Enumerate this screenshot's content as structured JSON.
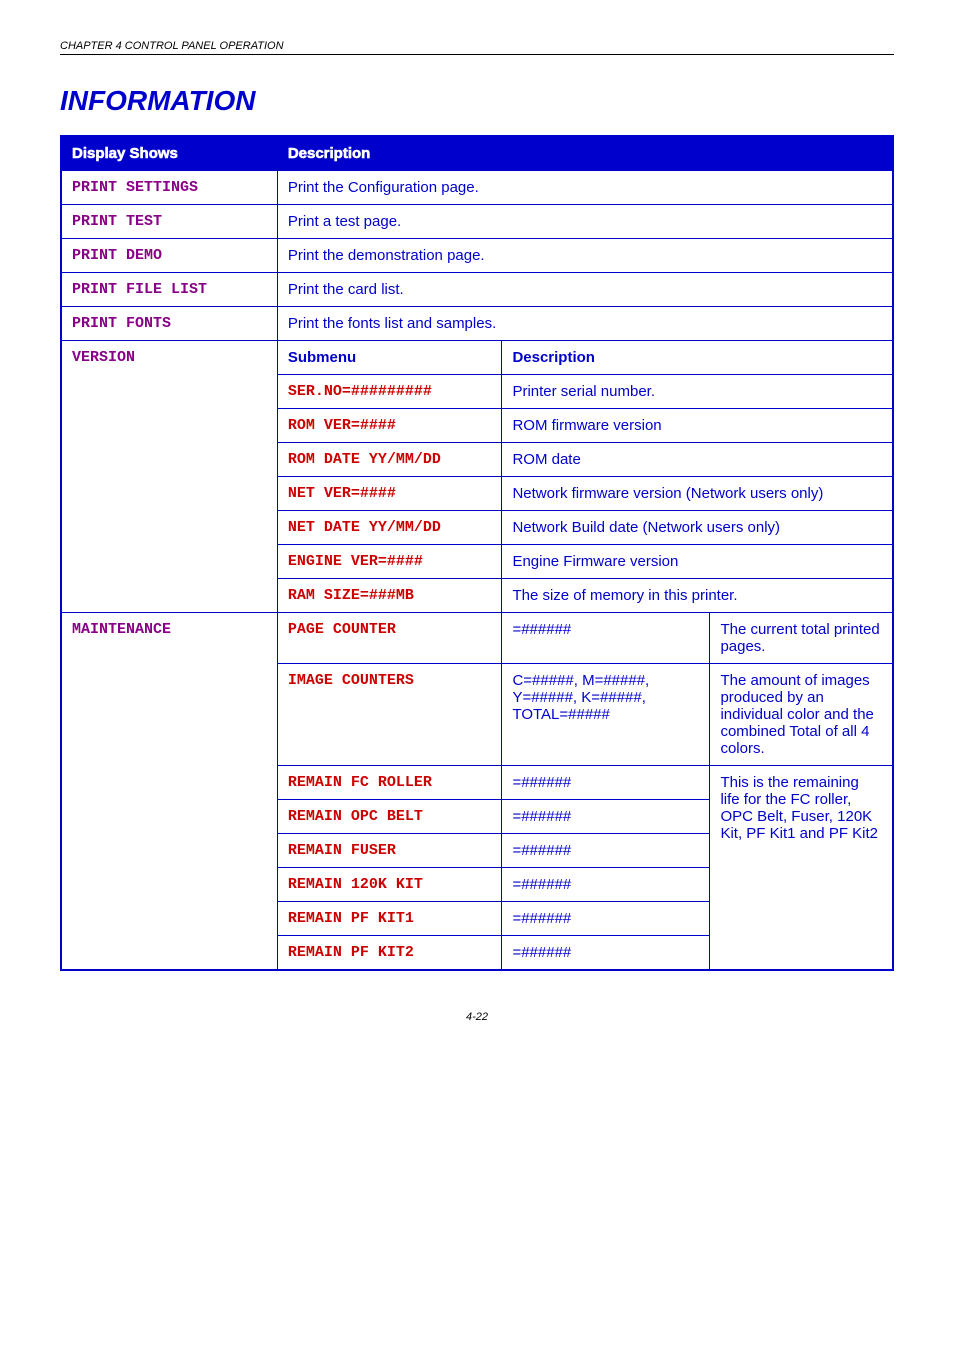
{
  "chapter": "CHAPTER 4 CONTROL PANEL OPERATION",
  "title": "INFORMATION",
  "headers": {
    "display_shows": "Display Shows",
    "description": "Description"
  },
  "rows": {
    "print_settings": {
      "label": "PRINT SETTINGS",
      "desc": "Print the Configuration page."
    },
    "print_test": {
      "label": "PRINT TEST",
      "desc": "Print a test page."
    },
    "print_demo": {
      "label": "PRINT DEMO",
      "desc": "Print the demonstration page."
    },
    "print_file_list": {
      "label": "PRINT FILE LIST",
      "desc": "Print the card list."
    },
    "print_fonts": {
      "label": "PRINT FONTS",
      "desc": "Print the fonts list and samples."
    }
  },
  "version": {
    "label": "VERSION",
    "sub_hdr": {
      "submenu": "Submenu",
      "description": "Description"
    },
    "items": {
      "ser_no": {
        "label": "SER.NO=#########",
        "desc": "Printer serial number."
      },
      "rom_ver": {
        "label": "ROM VER=####",
        "desc": "ROM firmware version"
      },
      "rom_date": {
        "label": "ROM DATE YY/MM/DD",
        "desc": "ROM date"
      },
      "net_ver": {
        "label": "NET VER=####",
        "desc": "Network firmware version (Network users only)"
      },
      "net_date": {
        "label": "NET DATE YY/MM/DD",
        "desc": "Network Build date (Network users only)"
      },
      "engine": {
        "label": "ENGINE VER=####",
        "desc": "Engine Firmware version"
      },
      "ram": {
        "label": "RAM SIZE=###MB",
        "desc": "The size of memory in this printer."
      }
    }
  },
  "maintenance": {
    "label": "MAINTENANCE",
    "page_counter": {
      "label": "PAGE COUNTER",
      "val": "=######",
      "desc": "The current total printed pages."
    },
    "image_counters": {
      "label": "IMAGE COUNTERS",
      "val": "C=#####, M=#####, Y=#####, K=#####, TOTAL=#####",
      "desc": "The amount of images produced by an individual color and the combined Total of all 4 colors."
    },
    "remain_group_desc": "This is the remaining life for the FC roller, OPC Belt, Fuser, 120K Kit, PF Kit1 and PF Kit2",
    "remain": {
      "fc_roller": {
        "label": "REMAIN FC ROLLER",
        "val": "=######"
      },
      "opc_belt": {
        "label": "REMAIN OPC BELT",
        "val": "=######"
      },
      "fuser": {
        "label": "REMAIN FUSER",
        "val": "=######"
      },
      "k120": {
        "label": "REMAIN 120K KIT",
        "val": "=######"
      },
      "pf1": {
        "label": "REMAIN PF KIT1",
        "val": "=######"
      },
      "pf2": {
        "label": "REMAIN PF KIT2",
        "val": "=######"
      }
    }
  },
  "page_number": "4-22"
}
